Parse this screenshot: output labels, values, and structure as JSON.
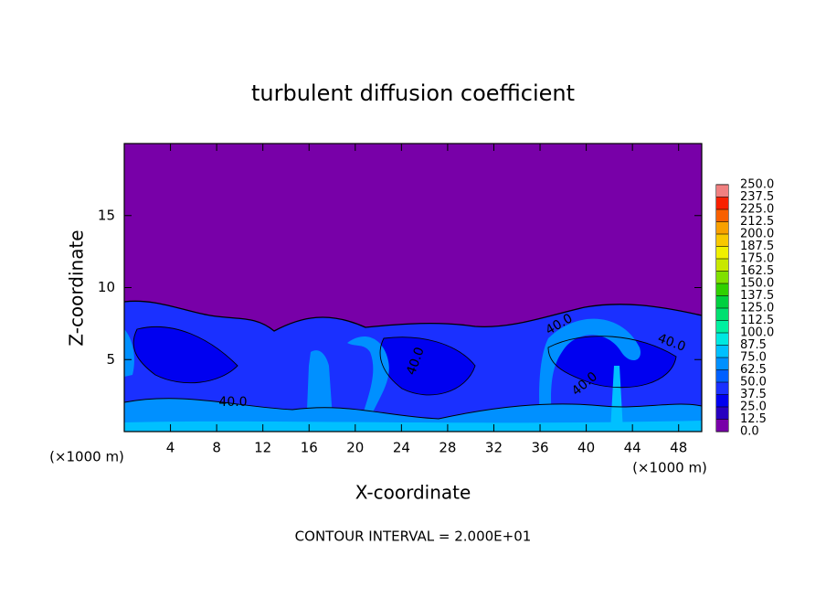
{
  "chart_data": {
    "type": "contour",
    "title": "turbulent diffusion coefficient",
    "xlabel": "X-coordinate",
    "ylabel": "Z-coordinate",
    "xunit": "(×1000 m)",
    "yunit": "(×1000 m)",
    "annotation": "CONTOUR INTERVAL = 2.000E+01",
    "contour_labels": [
      "40.0",
      "40.0",
      "40.0",
      "40.0",
      "40.0"
    ],
    "xlim": [
      0,
      50
    ],
    "ylim": [
      0,
      20
    ],
    "xticks": [
      4,
      8,
      12,
      16,
      20,
      24,
      28,
      32,
      36,
      40,
      44,
      48
    ],
    "yticks": [
      5,
      10,
      15
    ],
    "levels": [
      {
        "value": 0,
        "label": "0.0"
      },
      {
        "value": 12.5,
        "label": "12.5"
      },
      {
        "value": 25,
        "label": "25.0"
      },
      {
        "value": 37.5,
        "label": "37.5"
      },
      {
        "value": 50,
        "label": "50.0"
      },
      {
        "value": 62.5,
        "label": "62.5"
      },
      {
        "value": 75,
        "label": "75.0"
      },
      {
        "value": 87.5,
        "label": "87.5"
      },
      {
        "value": 100,
        "label": "100.0"
      },
      {
        "value": 112.5,
        "label": "112.5"
      },
      {
        "value": 125,
        "label": "125.0"
      },
      {
        "value": 137.5,
        "label": "137.5"
      },
      {
        "value": 150,
        "label": "150.0"
      },
      {
        "value": 162.5,
        "label": "162.5"
      },
      {
        "value": 175,
        "label": "175.0"
      },
      {
        "value": 187.5,
        "label": "187.5"
      },
      {
        "value": 200,
        "label": "200.0"
      },
      {
        "value": 212.5,
        "label": "212.5"
      },
      {
        "value": 225,
        "label": "225.0"
      },
      {
        "value": 237.5,
        "label": "237.5"
      },
      {
        "value": 250,
        "label": "250.0"
      }
    ],
    "colors": [
      "#7800a8",
      "#2800c0",
      "#0000f0",
      "#1a30ff",
      "#0060ff",
      "#0090ff",
      "#00c0ff",
      "#00e8e0",
      "#00f0a0",
      "#00e070",
      "#00d040",
      "#30d000",
      "#80e000",
      "#c8e800",
      "#f0f000",
      "#f8c800",
      "#f8a000",
      "#f86000",
      "#f82000",
      "#f08080"
    ]
  }
}
